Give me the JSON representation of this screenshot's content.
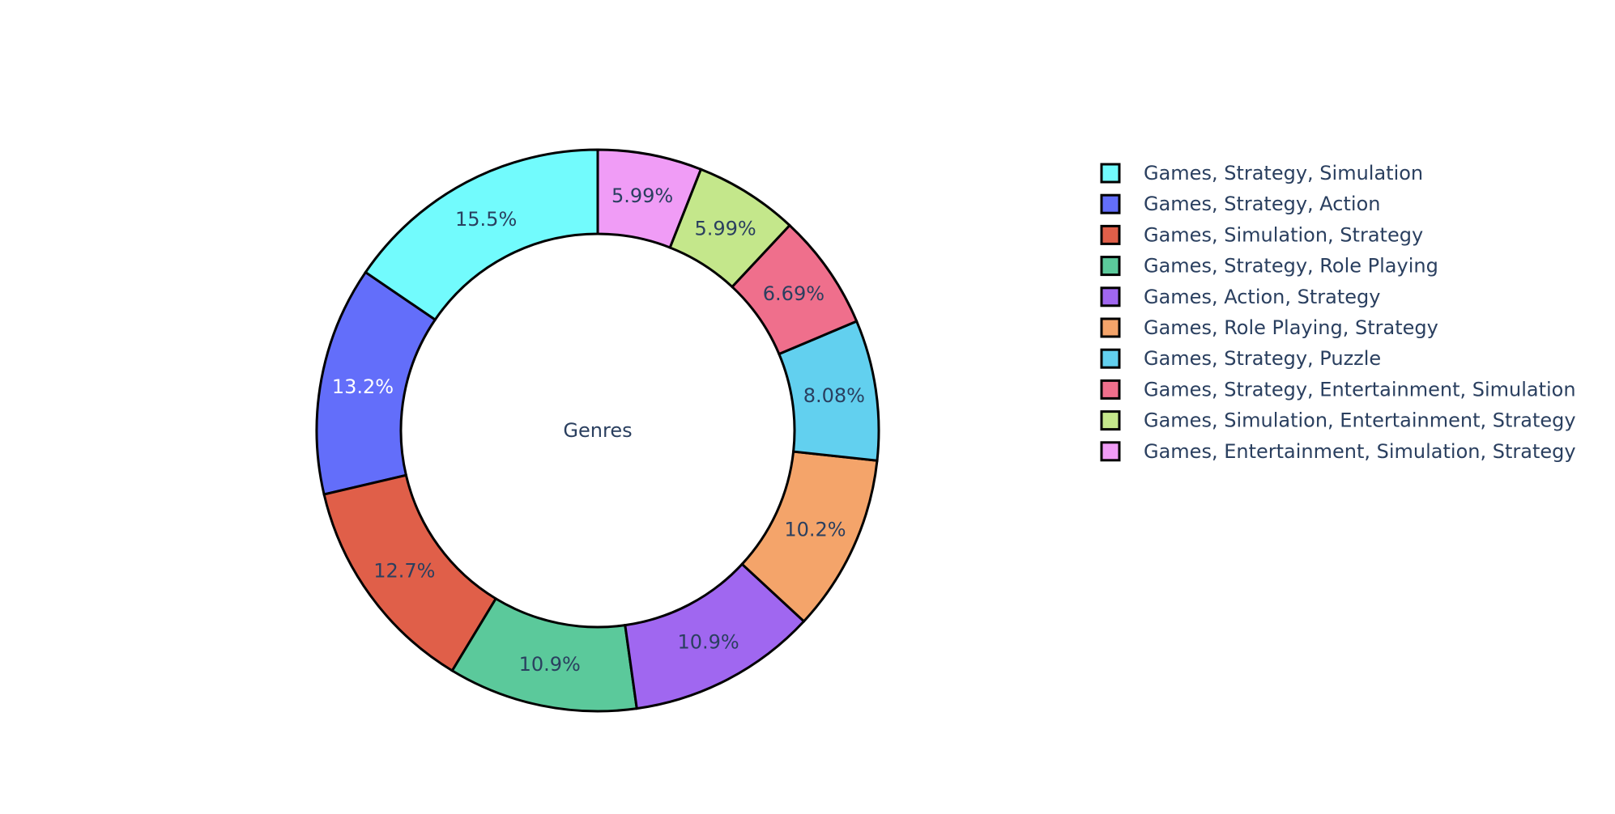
{
  "chart_data": {
    "type": "pie",
    "hole": true,
    "center_label": "Genres",
    "labels": [
      "Games, Strategy, Simulation",
      "Games, Strategy, Action",
      "Games, Simulation, Strategy",
      "Games, Strategy, Role Playing",
      "Games, Action, Strategy",
      "Games, Role Playing, Strategy",
      "Games, Strategy, Puzzle",
      "Games, Strategy, Entertainment, Simulation",
      "Games, Simulation, Entertainment, Strategy",
      "Games, Entertainment, Simulation, Strategy"
    ],
    "values": [
      15.5,
      13.2,
      12.7,
      10.9,
      10.9,
      10.2,
      8.08,
      6.69,
      5.99,
      5.99
    ],
    "value_labels": [
      "15.5%",
      "13.2%",
      "12.7%",
      "10.9%",
      "10.9%",
      "10.2%",
      "8.08%",
      "6.69%",
      "5.99%",
      "5.99%"
    ],
    "colors": [
      "#72fbfd",
      "#636efa",
      "#e05f49",
      "#5bc99b",
      "#a067f0",
      "#f4a46a",
      "#62d0ef",
      "#ef6f8c",
      "#c4e78b",
      "#f09cf6"
    ],
    "label_colors": [
      "#2a3f5f",
      "#ffffff",
      "#2a3f5f",
      "#2a3f5f",
      "#2a3f5f",
      "#2a3f5f",
      "#2a3f5f",
      "#2a3f5f",
      "#2a3f5f",
      "#2a3f5f"
    ],
    "direction": "counterclockwise",
    "legend_position": "right"
  }
}
